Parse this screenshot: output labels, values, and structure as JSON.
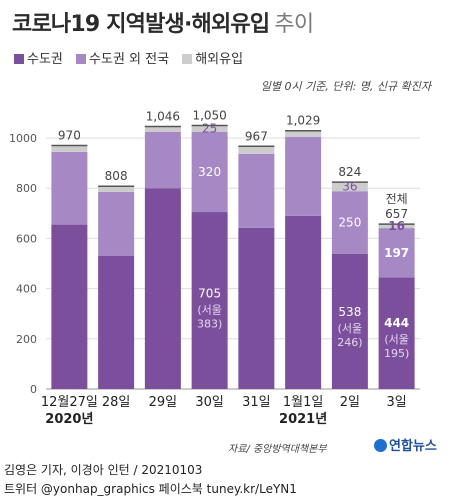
{
  "title": "코로나19 지역발생·해외유입",
  "title_suffix": "추이",
  "unit_note": "일별 0시 기준, 단위: 명, 신규 확진자",
  "source": "자료/ 중앙방역대책본부",
  "logo_text": "연합뉴스",
  "credit": "김영은 기자, 이경아 인턴 / 20210103",
  "social": "트위터 @yonhap_graphics  페이스북 tuney.kr/LeYN1",
  "chart_data": {
    "type": "bar",
    "stacked": true,
    "categories": [
      "12월27일",
      "28일",
      "29일",
      "30일",
      "31일",
      "1월1일",
      "2일",
      "3일"
    ],
    "year_labels": [
      {
        "index": 0,
        "label": "2020년"
      },
      {
        "index": 5,
        "label": "2021년"
      }
    ],
    "series": [
      {
        "name": "수도권",
        "color": "#7b4f9c",
        "values": [
          655,
          530,
          800,
          705,
          642,
          690,
          538,
          444
        ]
      },
      {
        "name": "수도권 외 전국",
        "color": "#a588c4",
        "values": [
          290,
          255,
          225,
          320,
          295,
          315,
          250,
          197
        ]
      },
      {
        "name": "해외유입",
        "color": "#cccccc",
        "values": [
          25,
          23,
          21,
          25,
          30,
          24,
          36,
          16
        ]
      }
    ],
    "totals": [
      970,
      808,
      1046,
      1050,
      967,
      1029,
      824,
      657
    ],
    "total_prefix_last": "전체",
    "labeled_segments": [
      {
        "index": 3,
        "series": 0,
        "value": "705",
        "sub": "(서울",
        "sub2": "383)"
      },
      {
        "index": 3,
        "series": 1,
        "value": "320"
      },
      {
        "index": 3,
        "series": 2,
        "value": "25"
      },
      {
        "index": 6,
        "series": 0,
        "value": "538",
        "sub": "(서울",
        "sub2": "246)"
      },
      {
        "index": 6,
        "series": 1,
        "value": "250"
      },
      {
        "index": 6,
        "series": 2,
        "value": "36"
      },
      {
        "index": 7,
        "series": 0,
        "value": "444",
        "sub": "(서울",
        "sub2": "195)",
        "bold": true
      },
      {
        "index": 7,
        "series": 1,
        "value": "197",
        "bold": true
      },
      {
        "index": 7,
        "series": 2,
        "value": "16",
        "bold": true
      }
    ],
    "y_ticks": [
      0,
      200,
      400,
      600,
      800,
      1000
    ],
    "ylim": [
      0,
      1150
    ],
    "grid": true,
    "legend_position": "top-left"
  }
}
